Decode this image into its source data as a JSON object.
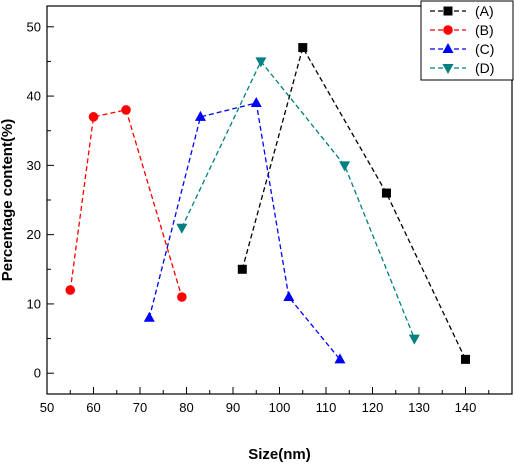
{
  "chart_data": {
    "type": "line",
    "xlabel": "Size(nm)",
    "ylabel": "Percentage content(%)",
    "xlim": [
      50,
      150
    ],
    "ylim": [
      -3,
      53
    ],
    "xticks": [
      "50",
      "60",
      "70",
      "80",
      "90",
      "100",
      "110",
      "120",
      "130",
      "140"
    ],
    "yticks": [
      "0",
      "10",
      "20",
      "30",
      "40",
      "50"
    ],
    "grid": false,
    "line_style": "dashed",
    "legend_position": "top-right",
    "series": [
      {
        "name": "(A)",
        "color": "#000000",
        "marker": "square",
        "x": [
          92,
          105,
          123,
          140
        ],
        "y": [
          15,
          47,
          26,
          2
        ]
      },
      {
        "name": "(B)",
        "color": "#ff0000",
        "marker": "circle",
        "x": [
          55,
          60,
          67,
          79
        ],
        "y": [
          12,
          37,
          38,
          11
        ]
      },
      {
        "name": "(C)",
        "color": "#0000ff",
        "marker": "triangle-up",
        "x": [
          72,
          83,
          95,
          102,
          113
        ],
        "y": [
          8,
          37,
          39,
          11,
          2
        ]
      },
      {
        "name": "(D)",
        "color": "#008080",
        "marker": "triangle-down",
        "x": [
          79,
          96,
          114,
          129
        ],
        "y": [
          21,
          45,
          30,
          5
        ]
      }
    ]
  }
}
